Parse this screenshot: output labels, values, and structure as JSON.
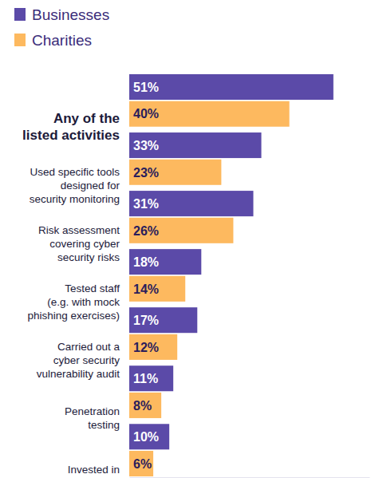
{
  "chart_data": {
    "type": "bar",
    "orientation": "horizontal",
    "categories": [
      "Any of the\nlisted activities",
      "Used specific tools\ndesigned for\nsecurity monitoring",
      "Risk assessment\ncovering cyber\nsecurity risks",
      "Tested staff\n(e.g. with mock\nphishing exercises)",
      "Carried out a\ncyber security\nvulnerability audit",
      "Penetration\ntesting",
      "Invested in\nthreat intelligence"
    ],
    "series": [
      {
        "name": "Businesses",
        "color": "#5b4aa8",
        "values": [
          51,
          33,
          31,
          18,
          17,
          11,
          10
        ],
        "value_labels": [
          "51%",
          "33%",
          "31%",
          "18%",
          "17%",
          "11%",
          "10%"
        ]
      },
      {
        "name": "Charities",
        "color": "#fdb95f",
        "values": [
          40,
          23,
          26,
          14,
          12,
          8,
          6
        ],
        "value_labels": [
          "40%",
          "23%",
          "26%",
          "14%",
          "12%",
          "8%",
          "6%"
        ]
      }
    ],
    "xlim": [
      0,
      60
    ],
    "xticks": [],
    "grid": false,
    "legend": "top-left",
    "data_labels": true,
    "tick_labels": "y"
  }
}
